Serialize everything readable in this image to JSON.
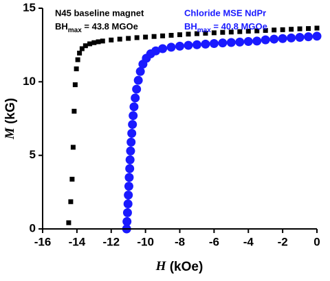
{
  "chart_data": {
    "type": "scatter",
    "xlabel": {
      "symbol": "H",
      "unit": "(kOe)"
    },
    "ylabel": {
      "symbol": "M",
      "unit": "(kG)"
    },
    "xlim": [
      -16,
      0
    ],
    "xticks": [
      -16,
      -14,
      -12,
      -10,
      -8,
      -6,
      -4,
      -2,
      0
    ],
    "ylim": [
      0,
      15
    ],
    "yticks": [
      0,
      5,
      10,
      15
    ],
    "annotations": [
      {
        "label": "N45 baseline magnet",
        "prefix": "BH",
        "subscript": "max",
        "suffix": " = 43.8 MGOe",
        "color": "#000000"
      },
      {
        "label": "Chloride MSE NdPr",
        "prefix": "BH",
        "subscript": "max",
        "suffix": " = 40.8 MGOe",
        "color": "#1a1aff"
      }
    ],
    "series": [
      {
        "color": "#000000",
        "marker": "square",
        "x": [
          -14.48,
          -14.36,
          -14.28,
          -14.22,
          -14.16,
          -14.1,
          -14.03,
          -13.95,
          -13.85,
          -13.7,
          -13.5,
          -13.25,
          -13.0,
          -12.75,
          -12.5,
          -12.0,
          -11.5,
          -11.0,
          -10.5,
          -10.0,
          -9.5,
          -9.0,
          -8.5,
          -8.0,
          -7.5,
          -7.0,
          -6.5,
          -6.0,
          -5.5,
          -5.0,
          -4.5,
          -4.0,
          -3.5,
          -3.0,
          -2.5,
          -2.0,
          -1.5,
          -1.0,
          -0.5,
          0
        ],
        "values": [
          0.42,
          1.85,
          3.38,
          5.55,
          8.0,
          9.8,
          10.88,
          11.5,
          11.95,
          12.25,
          12.45,
          12.58,
          12.66,
          12.72,
          12.77,
          12.84,
          12.9,
          12.95,
          13.0,
          13.04,
          13.08,
          13.12,
          13.16,
          13.2,
          13.24,
          13.27,
          13.3,
          13.33,
          13.36,
          13.38,
          13.41,
          13.44,
          13.46,
          13.49,
          13.52,
          13.54,
          13.57,
          13.6,
          13.62,
          13.65
        ]
      },
      {
        "color": "#1a1aff",
        "marker": "circle",
        "x": [
          -11.1,
          -11.08,
          -11.05,
          -11.02,
          -11.0,
          -10.97,
          -10.95,
          -10.92,
          -10.9,
          -10.87,
          -10.84,
          -10.8,
          -10.76,
          -10.72,
          -10.67,
          -10.6,
          -10.52,
          -10.42,
          -10.3,
          -10.15,
          -9.95,
          -9.7,
          -9.4,
          -9.0,
          -8.5,
          -8.0,
          -7.5,
          -7.0,
          -6.5,
          -6.0,
          -5.5,
          -5.0,
          -4.5,
          -4.0,
          -3.5,
          -3.0,
          -2.5,
          -2.0,
          -1.5,
          -1.0,
          -0.5,
          0
        ],
        "values": [
          0,
          0.5,
          1.1,
          1.7,
          2.3,
          2.9,
          3.5,
          4.1,
          4.7,
          5.3,
          5.9,
          6.5,
          7.1,
          7.7,
          8.3,
          8.9,
          9.5,
          10.1,
          10.7,
          11.2,
          11.6,
          11.9,
          12.1,
          12.25,
          12.35,
          12.42,
          12.48,
          12.52,
          12.56,
          12.6,
          12.64,
          12.67,
          12.7,
          12.74,
          12.77,
          12.85,
          12.9,
          12.94,
          12.98,
          13.02,
          13.06,
          13.1
        ]
      }
    ]
  }
}
